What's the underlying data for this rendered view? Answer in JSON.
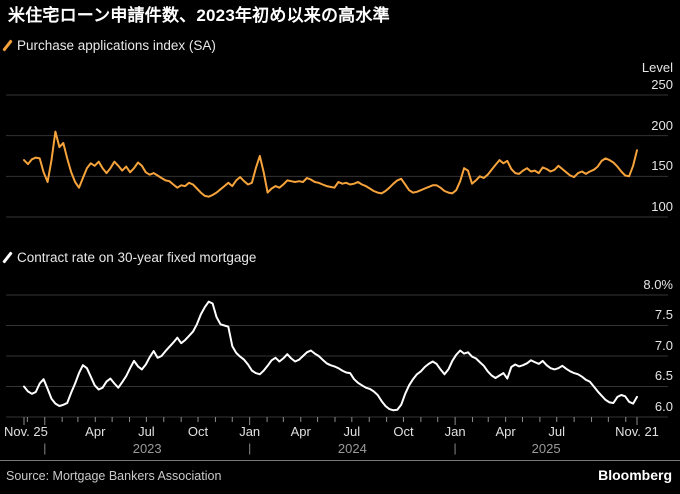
{
  "title": "米住宅ローン申請件数、2023年初め以来の高水準",
  "footer": {
    "source": "Source: Mortgage Bankers Association",
    "brand": "Bloomberg"
  },
  "colors": {
    "background": "#000000",
    "grid": "#333333",
    "axis_text": "#e6e6e6",
    "year_text": "#9a9a9a",
    "tick": "#8d8d8d",
    "divider": "#787878",
    "purchase_line": "#f6a33b",
    "rate_line": "#ffffff"
  },
  "x_axis": {
    "start_label": "Nov. 25",
    "end_label": "Nov. 21",
    "quarter_labels": [
      "Apr",
      "Jul",
      "Oct",
      "Jan",
      "Apr",
      "Jul",
      "Oct",
      "Jan",
      "Apr",
      "Jul"
    ],
    "year_labels": [
      "2023",
      "2024",
      "2025"
    ],
    "year_separator": "|"
  },
  "chart_data": [
    {
      "type": "line",
      "name": "Purchase applications index (SA)",
      "unit_label": "Level",
      "color": "#f6a33b",
      "frequency": "weekly",
      "ylim": [
        100,
        250
      ],
      "ytick_values": [
        250,
        200,
        150,
        100
      ],
      "ytick_labels": [
        "250",
        "200",
        "150",
        "100"
      ],
      "values": [
        170,
        165,
        171,
        173,
        172,
        155,
        143,
        170,
        205,
        186,
        191,
        172,
        155,
        143,
        136,
        148,
        160,
        166,
        163,
        168,
        160,
        154,
        160,
        168,
        163,
        157,
        162,
        155,
        160,
        167,
        163,
        155,
        152,
        154,
        151,
        148,
        145,
        144,
        140,
        136,
        139,
        138,
        142,
        140,
        135,
        130,
        126,
        125,
        127,
        130,
        134,
        138,
        142,
        138,
        145,
        149,
        144,
        140,
        142,
        160,
        175,
        155,
        130,
        135,
        138,
        136,
        140,
        145,
        144,
        143,
        144,
        143,
        148,
        146,
        143,
        142,
        140,
        138,
        137,
        136,
        143,
        141,
        142,
        140,
        141,
        143,
        140,
        138,
        135,
        132,
        130,
        129,
        132,
        136,
        141,
        145,
        147,
        140,
        133,
        130,
        131,
        133,
        135,
        137,
        139,
        139,
        136,
        132,
        130,
        129,
        133,
        144,
        160,
        157,
        141,
        145,
        150,
        148,
        152,
        158,
        164,
        170,
        166,
        169,
        159,
        154,
        153,
        157,
        160,
        156,
        157,
        154,
        161,
        159,
        156,
        158,
        163,
        159,
        155,
        151,
        149,
        154,
        156,
        153,
        156,
        158,
        162,
        169,
        172,
        170,
        167,
        162,
        156,
        151,
        150,
        163,
        182
      ]
    },
    {
      "type": "line",
      "name": "Contract rate on 30-year fixed mortgage",
      "unit_label": "",
      "color": "#ffffff",
      "frequency": "weekly",
      "ylim": [
        6.0,
        8.0
      ],
      "ytick_values": [
        8.0,
        7.5,
        7.0,
        6.5,
        6.0
      ],
      "ytick_labels": [
        "8.0%",
        "7.5",
        "7.0",
        "6.5",
        "6.0"
      ],
      "values": [
        6.5,
        6.42,
        6.38,
        6.41,
        6.55,
        6.62,
        6.46,
        6.3,
        6.22,
        6.18,
        6.2,
        6.23,
        6.4,
        6.55,
        6.72,
        6.85,
        6.8,
        6.66,
        6.52,
        6.45,
        6.48,
        6.58,
        6.63,
        6.55,
        6.48,
        6.57,
        6.67,
        6.8,
        6.92,
        6.83,
        6.78,
        6.86,
        6.98,
        7.08,
        6.97,
        7.0,
        7.08,
        7.15,
        7.22,
        7.3,
        7.21,
        7.26,
        7.33,
        7.4,
        7.52,
        7.68,
        7.8,
        7.89,
        7.86,
        7.64,
        7.52,
        7.5,
        7.48,
        7.16,
        7.05,
        6.99,
        6.94,
        6.86,
        6.76,
        6.72,
        6.7,
        6.76,
        6.84,
        6.93,
        6.97,
        6.91,
        6.96,
        7.03,
        6.96,
        6.91,
        6.94,
        7.0,
        7.06,
        7.09,
        7.04,
        7.0,
        6.94,
        6.88,
        6.85,
        6.83,
        6.8,
        6.76,
        6.73,
        6.72,
        6.62,
        6.56,
        6.52,
        6.48,
        6.46,
        6.42,
        6.36,
        6.26,
        6.18,
        6.13,
        6.11,
        6.12,
        6.2,
        6.38,
        6.52,
        6.62,
        6.7,
        6.75,
        6.82,
        6.87,
        6.91,
        6.87,
        6.78,
        6.7,
        6.78,
        6.92,
        7.02,
        7.09,
        7.04,
        7.06,
        6.99,
        6.96,
        6.9,
        6.84,
        6.75,
        6.68,
        6.64,
        6.68,
        6.72,
        6.63,
        6.82,
        6.86,
        6.83,
        6.85,
        6.88,
        6.93,
        6.9,
        6.87,
        6.92,
        6.85,
        6.8,
        6.78,
        6.8,
        6.84,
        6.79,
        6.75,
        6.72,
        6.7,
        6.66,
        6.61,
        6.58,
        6.5,
        6.42,
        6.35,
        6.28,
        6.24,
        6.23,
        6.33,
        6.36,
        6.34,
        6.25,
        6.22,
        6.33
      ]
    }
  ]
}
